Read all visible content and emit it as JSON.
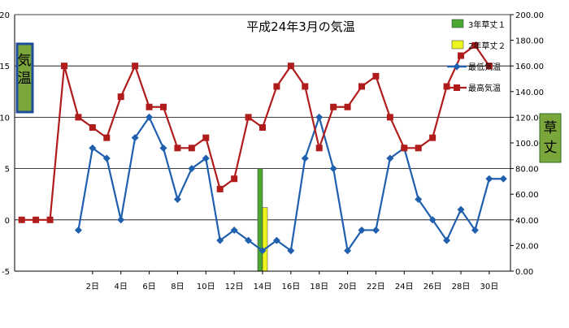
{
  "chart_data": {
    "type": "line",
    "title": "平成24年3月の気温",
    "left_axis_label": "気温",
    "right_axis_label": "草丈",
    "grid": true,
    "legend_position": "top-right",
    "x": [
      1,
      2,
      3,
      4,
      5,
      6,
      7,
      8,
      9,
      10,
      11,
      12,
      13,
      14,
      15,
      16,
      17,
      18,
      19,
      20,
      21,
      22,
      23,
      24,
      25,
      26,
      27,
      28,
      29,
      30,
      31
    ],
    "x_tick_labels": [
      "2日",
      "4日",
      "6日",
      "8日",
      "10日",
      "12日",
      "14日",
      "16日",
      "18日",
      "20日",
      "22日",
      "24日",
      "26日",
      "28日",
      "30日"
    ],
    "x_tick_values": [
      2,
      4,
      6,
      8,
      10,
      12,
      14,
      16,
      18,
      20,
      22,
      24,
      26,
      28,
      30
    ],
    "y_left_ticks": [
      "-5",
      "0",
      "5",
      "10",
      "15",
      "20"
    ],
    "y_left_range": [
      -5,
      20
    ],
    "y_right_ticks": [
      "0.00",
      "20.00",
      "40.00",
      "60.00",
      "80.00",
      "100.00",
      "120.00",
      "140.00",
      "160.00",
      "180.00",
      "200.00"
    ],
    "y_right_range": [
      0,
      200
    ],
    "series": [
      {
        "name": "最低気温",
        "axis": "left",
        "kind": "line",
        "color": "#1f5fae",
        "marker": "diamond",
        "x": [
          -3,
          -2,
          -1,
          0,
          1,
          2,
          3,
          4,
          5,
          6,
          7,
          8,
          9,
          10,
          11,
          12,
          13,
          14,
          15,
          16,
          17,
          18,
          19,
          20,
          21,
          22,
          23,
          24,
          25,
          26,
          27,
          28,
          29,
          30,
          31
        ],
        "values": [
          null,
          null,
          null,
          null,
          -1,
          7,
          6,
          0,
          8,
          10,
          7,
          2,
          5,
          6,
          -2,
          -1,
          -2,
          -3,
          -2,
          -3,
          6,
          10,
          5,
          -3,
          -1,
          -1,
          6,
          7,
          2,
          0,
          -2,
          1,
          -1,
          4,
          4
        ]
      },
      {
        "name": "最高気温",
        "axis": "left",
        "kind": "line",
        "color": "#b01c1c",
        "marker": "square",
        "x": [
          -3,
          -2,
          -1,
          0,
          1,
          2,
          3,
          4,
          5,
          6,
          7,
          8,
          9,
          10,
          11,
          12,
          13,
          14,
          15,
          16,
          17,
          18,
          19,
          20,
          21,
          22,
          23,
          24,
          25,
          26,
          27,
          28,
          29,
          30,
          31
        ],
        "values": [
          0,
          0,
          0,
          15,
          10,
          9,
          8,
          12,
          15,
          11,
          11,
          7,
          7,
          8,
          3,
          4,
          10,
          9,
          13,
          15,
          13,
          7,
          11,
          11,
          13,
          14,
          10,
          7,
          7,
          8,
          13,
          16,
          17,
          15,
          null
        ]
      },
      {
        "name": "3年草丈１",
        "axis": "left",
        "kind": "bar",
        "color": "#4aa832",
        "x": [
          14
        ],
        "values": [
          5
        ]
      },
      {
        "name": "2年草丈２",
        "axis": "left",
        "kind": "bar",
        "color": "#ecf51e",
        "x": [
          14
        ],
        "values": [
          1.2
        ]
      }
    ]
  }
}
